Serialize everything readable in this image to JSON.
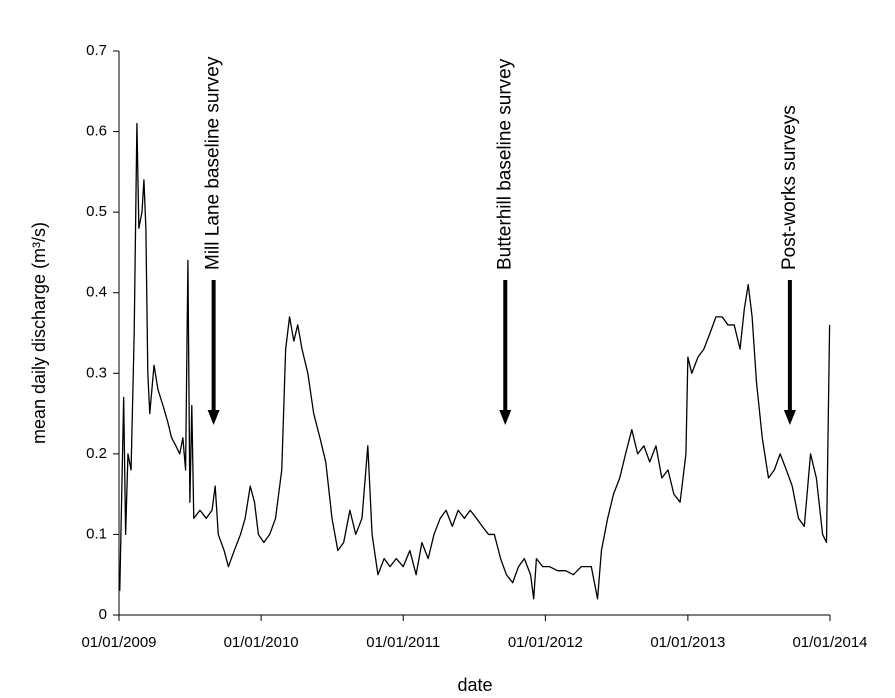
{
  "chart_data": {
    "type": "line",
    "xlabel": "date",
    "ylabel": "mean daily discharge (m³/s)",
    "xlim": [
      "2009-01-01",
      "2014-01-01"
    ],
    "xticks": [
      {
        "value": "2009-01-01",
        "label": "01/01/2009"
      },
      {
        "value": "2010-01-01",
        "label": "01/01/2010"
      },
      {
        "value": "2011-01-01",
        "label": "01/01/2011"
      },
      {
        "value": "2012-01-01",
        "label": "01/01/2012"
      },
      {
        "value": "2013-01-01",
        "label": "01/01/2013"
      },
      {
        "value": "2014-01-01",
        "label": "01/01/2014"
      }
    ],
    "ylim": [
      0,
      0.7
    ],
    "yticks": [
      0,
      0.1,
      0.2,
      0.3,
      0.4,
      0.5,
      0.6,
      0.7
    ],
    "grid": false,
    "annotations": [
      {
        "text": "Mill Lane baseline survey",
        "x": "2009-09-01"
      },
      {
        "text": "Butterhill baseline survey",
        "x": "2011-09-20"
      },
      {
        "text": "Post-works surveys",
        "x": "2013-09-20"
      }
    ],
    "x": [
      "2009-01-03",
      "2009-01-13",
      "2009-01-18",
      "2009-01-24",
      "2009-02-01",
      "2009-02-09",
      "2009-02-16",
      "2009-02-21",
      "2009-03-01",
      "2009-03-06",
      "2009-03-11",
      "2009-03-16",
      "2009-03-21",
      "2009-04-01",
      "2009-04-11",
      "2009-04-24",
      "2009-05-06",
      "2009-05-16",
      "2009-05-27",
      "2009-06-06",
      "2009-06-14",
      "2009-06-21",
      "2009-06-27",
      "2009-07-02",
      "2009-07-07",
      "2009-07-12",
      "2009-07-28",
      "2009-08-13",
      "2009-08-28",
      "2009-09-05",
      "2009-09-13",
      "2009-09-28",
      "2009-10-09",
      "2009-10-24",
      "2009-11-09",
      "2009-11-21",
      "2009-12-04",
      "2009-12-15",
      "2009-12-25",
      "2010-01-08",
      "2010-01-23",
      "2010-02-07",
      "2010-02-23",
      "2010-03-05",
      "2010-03-15",
      "2010-03-26",
      "2010-04-05",
      "2010-04-16",
      "2010-05-01",
      "2010-05-16",
      "2010-06-01",
      "2010-06-16",
      "2010-07-02",
      "2010-07-17",
      "2010-08-01",
      "2010-08-17",
      "2010-09-01",
      "2010-09-17",
      "2010-10-02",
      "2010-10-13",
      "2010-10-28",
      "2010-11-13",
      "2010-11-28",
      "2010-12-14",
      "2011-01-01",
      "2011-01-18",
      "2011-02-03",
      "2011-02-18",
      "2011-03-06",
      "2011-03-21",
      "2011-04-06",
      "2011-04-21",
      "2011-05-07",
      "2011-05-22",
      "2011-06-07",
      "2011-06-22",
      "2011-07-08",
      "2011-07-23",
      "2011-08-08",
      "2011-08-23",
      "2011-09-08",
      "2011-09-23",
      "2011-10-09",
      "2011-10-24",
      "2011-11-08",
      "2011-11-24",
      "2011-12-02",
      "2011-12-09",
      "2011-12-25",
      "2012-01-12",
      "2012-02-01",
      "2012-02-22",
      "2012-03-13",
      "2012-04-02",
      "2012-04-28",
      "2012-05-14",
      "2012-05-24",
      "2012-06-09",
      "2012-06-24",
      "2012-07-10",
      "2012-07-25",
      "2012-08-10",
      "2012-08-25",
      "2012-09-10",
      "2012-09-25",
      "2012-10-11",
      "2012-10-26",
      "2012-11-11",
      "2012-11-26",
      "2012-12-12",
      "2012-12-27",
      "2013-01-01",
      "2013-01-11",
      "2013-01-27",
      "2013-02-11",
      "2013-02-27",
      "2013-03-14",
      "2013-03-30",
      "2013-04-14",
      "2013-04-30",
      "2013-05-15",
      "2013-05-26",
      "2013-06-05",
      "2013-06-15",
      "2013-06-26",
      "2013-07-11",
      "2013-07-27",
      "2013-08-11",
      "2013-08-26",
      "2013-09-11",
      "2013-09-26",
      "2013-10-12",
      "2013-10-27",
      "2013-11-12",
      "2013-11-27",
      "2013-12-13",
      "2013-12-23",
      "2013-12-31"
    ],
    "series": [
      {
        "name": "discharge",
        "color": "#000000",
        "values": [
          0.03,
          0.27,
          0.1,
          0.2,
          0.18,
          0.35,
          0.61,
          0.48,
          0.5,
          0.54,
          0.48,
          0.3,
          0.25,
          0.31,
          0.28,
          0.26,
          0.24,
          0.22,
          0.21,
          0.2,
          0.22,
          0.18,
          0.44,
          0.14,
          0.26,
          0.12,
          0.13,
          0.12,
          0.13,
          0.16,
          0.1,
          0.08,
          0.06,
          0.08,
          0.1,
          0.12,
          0.16,
          0.14,
          0.1,
          0.09,
          0.1,
          0.12,
          0.18,
          0.33,
          0.37,
          0.34,
          0.36,
          0.33,
          0.3,
          0.25,
          0.22,
          0.19,
          0.12,
          0.08,
          0.09,
          0.13,
          0.1,
          0.12,
          0.21,
          0.1,
          0.05,
          0.07,
          0.06,
          0.07,
          0.06,
          0.08,
          0.05,
          0.09,
          0.07,
          0.1,
          0.12,
          0.13,
          0.11,
          0.13,
          0.12,
          0.13,
          0.12,
          0.11,
          0.1,
          0.1,
          0.07,
          0.05,
          0.04,
          0.06,
          0.07,
          0.05,
          0.02,
          0.07,
          0.06,
          0.06,
          0.055,
          0.055,
          0.05,
          0.06,
          0.06,
          0.02,
          0.08,
          0.12,
          0.15,
          0.17,
          0.2,
          0.23,
          0.2,
          0.21,
          0.19,
          0.21,
          0.17,
          0.18,
          0.15,
          0.14,
          0.2,
          0.32,
          0.3,
          0.32,
          0.33,
          0.35,
          0.37,
          0.37,
          0.36,
          0.36,
          0.33,
          0.38,
          0.41,
          0.37,
          0.29,
          0.22,
          0.17,
          0.18,
          0.2,
          0.18,
          0.16,
          0.12,
          0.11,
          0.2,
          0.17,
          0.1,
          0.09,
          0.36
        ]
      }
    ]
  }
}
